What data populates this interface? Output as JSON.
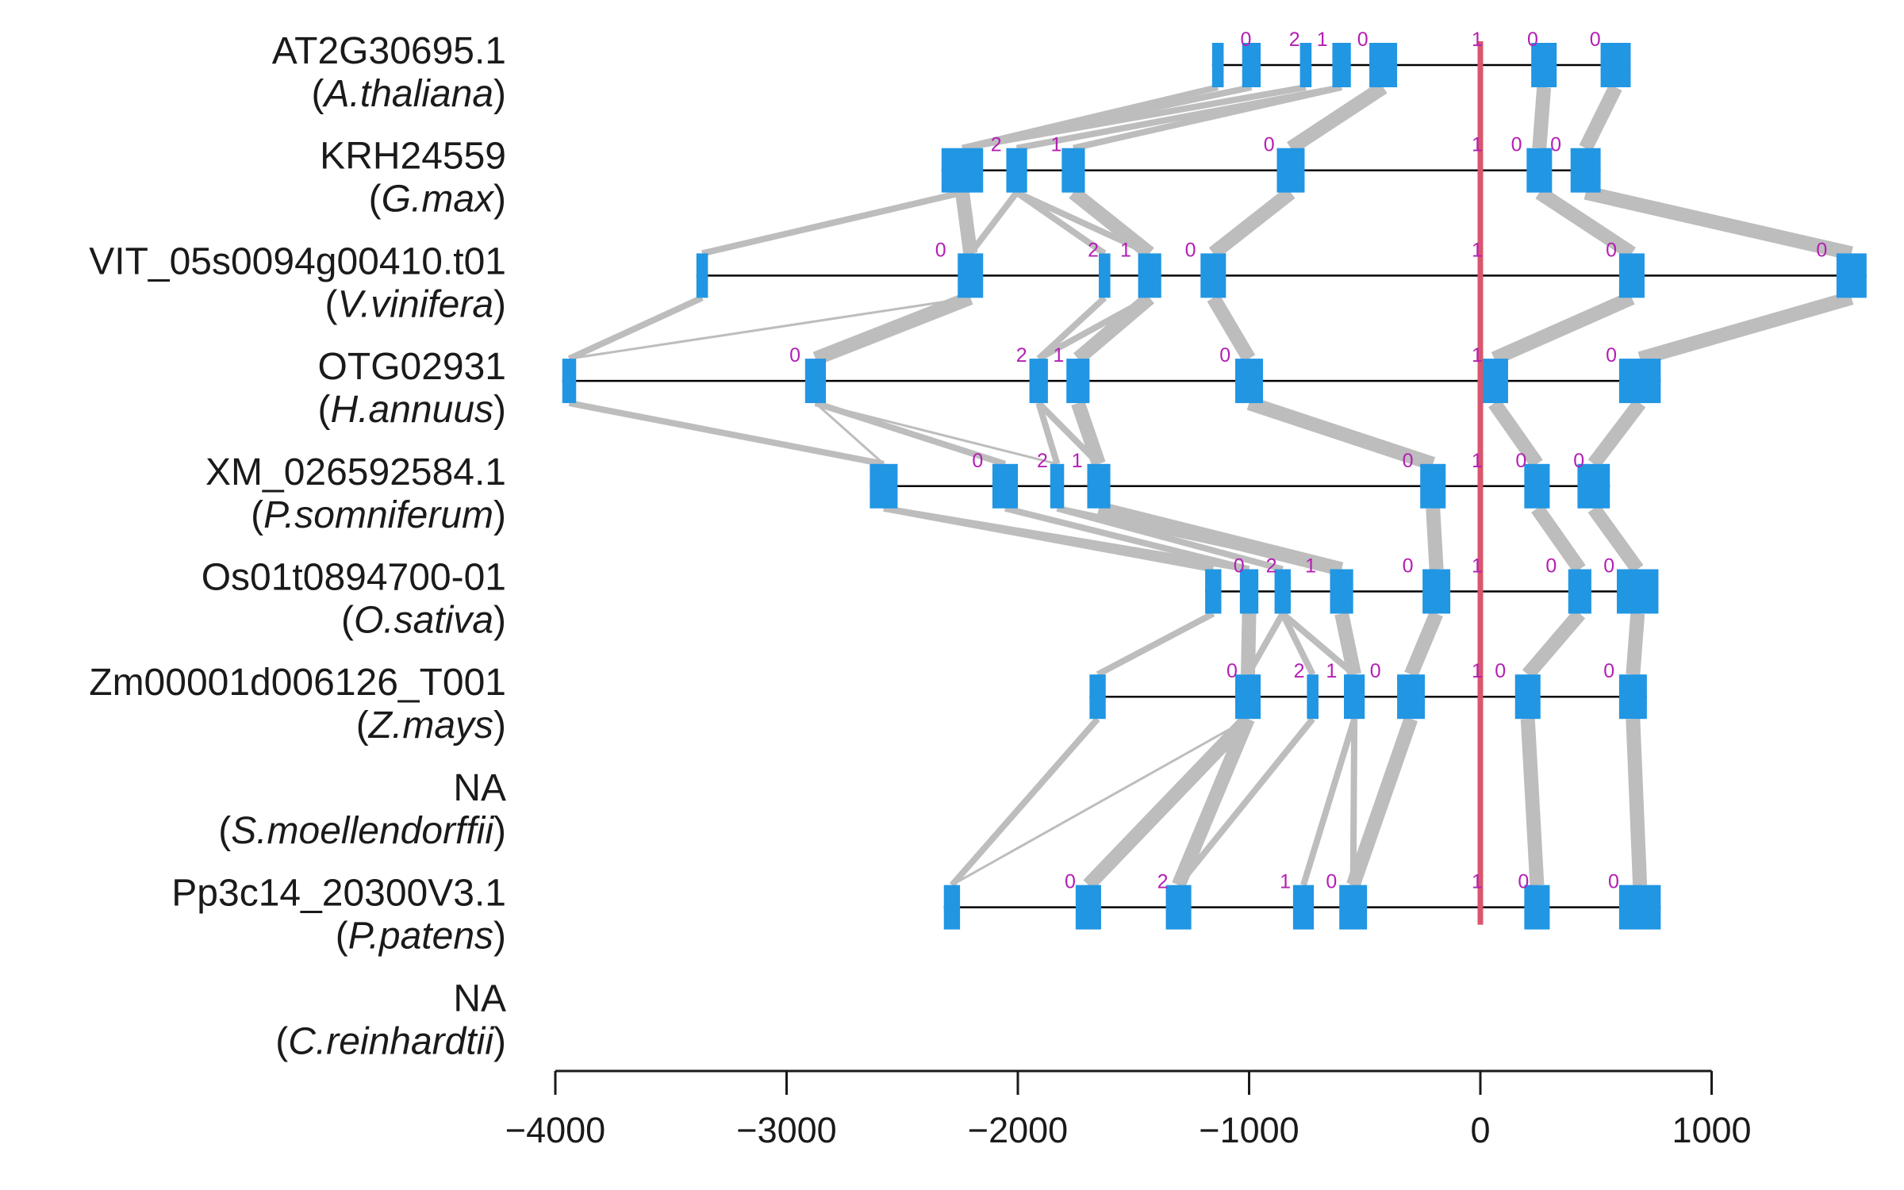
{
  "chart_data": {
    "type": "gene-structure-alignment",
    "colors": {
      "exon": "#2196e3",
      "link": "#bdbdbd",
      "anchor": "#d9566e",
      "phase": "#b41fb4",
      "intron": "#000000"
    },
    "x_axis": {
      "ticks": [
        -4000,
        -3000,
        -2000,
        -1000,
        0,
        1000
      ],
      "tick_labels": [
        "−4000",
        "−3000",
        "−2000",
        "−1000",
        "0",
        "1000"
      ]
    },
    "anchor_position": 0,
    "genes": [
      {
        "gene": "AT2G30695.1",
        "species": "A.thaliana",
        "exons": [
          [
            -1160,
            -1110
          ],
          [
            -1030,
            -950
          ],
          [
            -780,
            -730
          ],
          [
            -640,
            -560
          ],
          [
            -480,
            -360
          ],
          [
            220,
            330
          ],
          [
            520,
            650
          ]
        ],
        "phases": [
          [
            -1000,
            "0"
          ],
          [
            -790,
            "2"
          ],
          [
            -670,
            "1"
          ],
          [
            -495,
            "0"
          ],
          [
            0,
            "1"
          ],
          [
            240,
            "0"
          ],
          [
            510,
            "0"
          ]
        ]
      },
      {
        "gene": "KRH24559",
        "species": "G.max",
        "exons": [
          [
            -2330,
            -2150
          ],
          [
            -2050,
            -1960
          ],
          [
            -1810,
            -1710
          ],
          [
            -880,
            -760
          ],
          [
            200,
            310
          ],
          [
            390,
            520
          ]
        ],
        "phases": [
          [
            -2080,
            "2"
          ],
          [
            -1820,
            "1"
          ],
          [
            -900,
            "0"
          ],
          [
            0,
            "1"
          ],
          [
            170,
            "0"
          ],
          [
            340,
            "0"
          ]
        ]
      },
      {
        "gene": "VIT_05s0094g00410.t01",
        "species": "V.vinifera",
        "exons": [
          [
            -3390,
            -3340
          ],
          [
            -2260,
            -2150
          ],
          [
            -1650,
            -1600
          ],
          [
            -1480,
            -1380
          ],
          [
            -1210,
            -1100
          ],
          [
            600,
            710
          ],
          [
            1540,
            1670
          ]
        ],
        "phases": [
          [
            -2320,
            "0"
          ],
          [
            -1660,
            "2"
          ],
          [
            -1520,
            "1"
          ],
          [
            -1240,
            "0"
          ],
          [
            0,
            "1"
          ],
          [
            580,
            "0"
          ],
          [
            1490,
            "0"
          ]
        ]
      },
      {
        "gene": "OTG02931",
        "species": "H.annuus",
        "exons": [
          [
            -3970,
            -3910
          ],
          [
            -2920,
            -2830
          ],
          [
            -1950,
            -1870
          ],
          [
            -1790,
            -1690
          ],
          [
            -1060,
            -940
          ],
          [
            0,
            120
          ],
          [
            600,
            780
          ]
        ],
        "phases": [
          [
            -2950,
            "0"
          ],
          [
            -1970,
            "2"
          ],
          [
            -1810,
            "1"
          ],
          [
            -1090,
            "0"
          ],
          [
            0,
            "1"
          ],
          [
            580,
            "0"
          ]
        ]
      },
      {
        "gene": "XM_026592584.1",
        "species": "P.somniferum",
        "exons": [
          [
            -2640,
            -2520
          ],
          [
            -2110,
            -2000
          ],
          [
            -1860,
            -1800
          ],
          [
            -1700,
            -1600
          ],
          [
            -260,
            -150
          ],
          [
            190,
            300
          ],
          [
            420,
            560
          ]
        ],
        "phases": [
          [
            -2160,
            "0"
          ],
          [
            -1880,
            "2"
          ],
          [
            -1730,
            "1"
          ],
          [
            -300,
            "0"
          ],
          [
            0,
            "1"
          ],
          [
            190,
            "0"
          ],
          [
            440,
            "0"
          ]
        ]
      },
      {
        "gene": "Os01t0894700-01",
        "species": "O.sativa",
        "exons": [
          [
            -1190,
            -1120
          ],
          [
            -1040,
            -960
          ],
          [
            -890,
            -820
          ],
          [
            -650,
            -550
          ],
          [
            -250,
            -130
          ],
          [
            380,
            480
          ],
          [
            590,
            770
          ]
        ],
        "phases": [
          [
            -1030,
            "0"
          ],
          [
            -890,
            "2"
          ],
          [
            -720,
            "1"
          ],
          [
            -300,
            "0"
          ],
          [
            0,
            "1"
          ],
          [
            320,
            "0"
          ],
          [
            570,
            "0"
          ]
        ]
      },
      {
        "gene": "Zm00001d006126_T001",
        "species": "Z.mays",
        "exons": [
          [
            -1690,
            -1620
          ],
          [
            -1060,
            -950
          ],
          [
            -750,
            -700
          ],
          [
            -590,
            -500
          ],
          [
            -360,
            -240
          ],
          [
            150,
            260
          ],
          [
            600,
            720
          ]
        ],
        "phases": [
          [
            -1060,
            "0"
          ],
          [
            -770,
            "2"
          ],
          [
            -630,
            "1"
          ],
          [
            -440,
            "0"
          ],
          [
            0,
            "1"
          ],
          [
            100,
            "0"
          ],
          [
            570,
            "0"
          ]
        ]
      },
      {
        "gene": "NA",
        "species": "S.moellendorffii",
        "exons": [],
        "phases": []
      },
      {
        "gene": "Pp3c14_20300V3.1",
        "species": "P.patens",
        "exons": [
          [
            -2320,
            -2250
          ],
          [
            -1750,
            -1640
          ],
          [
            -1360,
            -1250
          ],
          [
            -810,
            -720
          ],
          [
            -610,
            -490
          ],
          [
            190,
            300
          ],
          [
            600,
            780
          ]
        ],
        "phases": [
          [
            -1760,
            "0"
          ],
          [
            -1360,
            "2"
          ],
          [
            -830,
            "1"
          ],
          [
            -630,
            "0"
          ],
          [
            0,
            "1"
          ],
          [
            200,
            "0"
          ],
          [
            590,
            "0"
          ]
        ]
      },
      {
        "gene": "NA",
        "species": "C.reinhardtii",
        "exons": [],
        "phases": []
      }
    ],
    "links": [
      {
        "from": 0,
        "to": 1,
        "pairs": [
          [
            0,
            0,
            "t"
          ],
          [
            1,
            0,
            "t"
          ],
          [
            2,
            0,
            "t"
          ],
          [
            3,
            1,
            "t"
          ],
          [
            3,
            2,
            "t"
          ],
          [
            4,
            3,
            "T"
          ],
          [
            5,
            4,
            "T"
          ],
          [
            6,
            5,
            "T"
          ]
        ]
      },
      {
        "from": 1,
        "to": 2,
        "pairs": [
          [
            0,
            0,
            "t"
          ],
          [
            0,
            1,
            "T"
          ],
          [
            1,
            1,
            "t"
          ],
          [
            1,
            2,
            "t"
          ],
          [
            1,
            3,
            "t"
          ],
          [
            2,
            3,
            "T"
          ],
          [
            3,
            4,
            "T"
          ],
          [
            4,
            5,
            "T"
          ],
          [
            5,
            6,
            "T"
          ]
        ]
      },
      {
        "from": 2,
        "to": 3,
        "pairs": [
          [
            0,
            0,
            "t"
          ],
          [
            1,
            0,
            "f"
          ],
          [
            1,
            1,
            "T"
          ],
          [
            2,
            2,
            "t"
          ],
          [
            3,
            2,
            "t"
          ],
          [
            3,
            3,
            "T"
          ],
          [
            4,
            4,
            "T"
          ],
          [
            5,
            5,
            "T"
          ],
          [
            6,
            6,
            "T"
          ]
        ]
      },
      {
        "from": 3,
        "to": 4,
        "pairs": [
          [
            0,
            0,
            "t"
          ],
          [
            1,
            0,
            "f"
          ],
          [
            1,
            1,
            "t"
          ],
          [
            1,
            2,
            "f"
          ],
          [
            2,
            2,
            "t"
          ],
          [
            2,
            3,
            "t"
          ],
          [
            3,
            3,
            "T"
          ],
          [
            4,
            4,
            "T"
          ],
          [
            5,
            5,
            "T"
          ],
          [
            6,
            6,
            "T"
          ]
        ]
      },
      {
        "from": 4,
        "to": 5,
        "pairs": [
          [
            0,
            0,
            "t"
          ],
          [
            0,
            1,
            "t"
          ],
          [
            1,
            1,
            "t"
          ],
          [
            2,
            2,
            "t"
          ],
          [
            2,
            3,
            "t"
          ],
          [
            3,
            3,
            "T"
          ],
          [
            4,
            4,
            "T"
          ],
          [
            5,
            5,
            "T"
          ],
          [
            6,
            6,
            "T"
          ]
        ]
      },
      {
        "from": 5,
        "to": 6,
        "pairs": [
          [
            0,
            0,
            "t"
          ],
          [
            1,
            1,
            "T"
          ],
          [
            2,
            1,
            "t"
          ],
          [
            2,
            2,
            "t"
          ],
          [
            2,
            3,
            "t"
          ],
          [
            3,
            3,
            "T"
          ],
          [
            4,
            4,
            "T"
          ],
          [
            5,
            5,
            "T"
          ],
          [
            6,
            6,
            "T"
          ]
        ]
      },
      {
        "from": 6,
        "to": 8,
        "pairs": [
          [
            0,
            0,
            "t"
          ],
          [
            1,
            0,
            "f"
          ],
          [
            1,
            1,
            "T"
          ],
          [
            1,
            2,
            "T"
          ],
          [
            2,
            2,
            "t"
          ],
          [
            3,
            3,
            "t"
          ],
          [
            3,
            4,
            "t"
          ],
          [
            4,
            4,
            "T"
          ],
          [
            5,
            5,
            "T"
          ],
          [
            6,
            6,
            "T"
          ]
        ]
      }
    ]
  }
}
